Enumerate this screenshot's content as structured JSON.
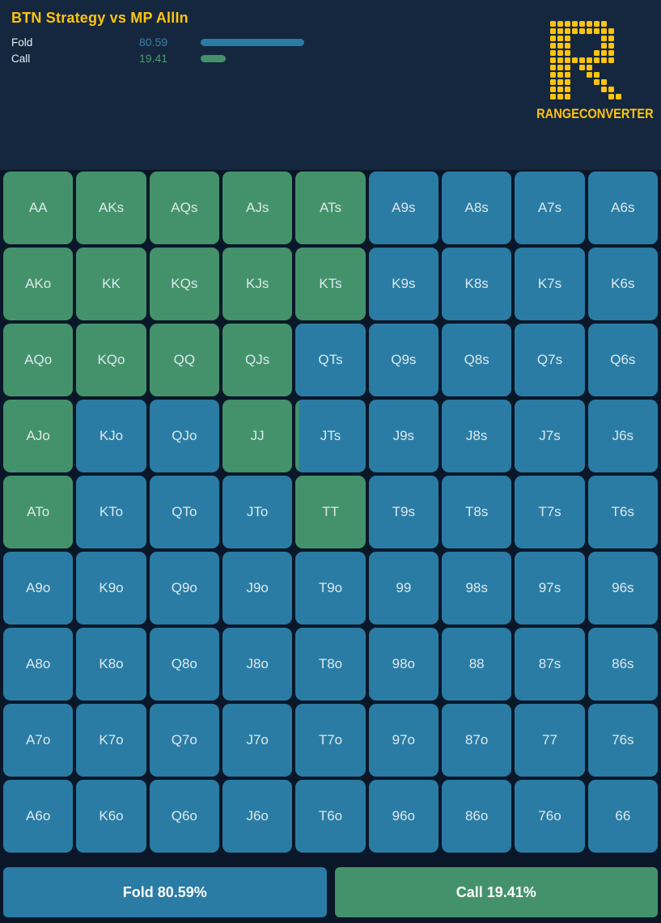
{
  "header": {
    "title": "BTN Strategy vs MP AllIn",
    "stats": [
      {
        "label": "Fold",
        "value": "80.59",
        "pct": 80.59,
        "value_color": "#3E81A9",
        "bar_color": "#2A7CA4"
      },
      {
        "label": "Call",
        "value": "19.41",
        "pct": 19.41,
        "value_color": "#4C9C70",
        "bar_color": "#45916B"
      }
    ],
    "logo_text": "RANGECONVERTER"
  },
  "colors": {
    "call_green": "#44926B",
    "fold_blue": "#2A7CA4",
    "background": "#0A1728",
    "header_background": "#15273F",
    "accent_gold": "#FFC40D"
  },
  "grid": {
    "rows": 9,
    "cols": 9,
    "cells": [
      {
        "label": "AA",
        "call_pct": 100
      },
      {
        "label": "AKs",
        "call_pct": 100
      },
      {
        "label": "AQs",
        "call_pct": 100
      },
      {
        "label": "AJs",
        "call_pct": 100
      },
      {
        "label": "ATs",
        "call_pct": 100
      },
      {
        "label": "A9s",
        "call_pct": 0
      },
      {
        "label": "A8s",
        "call_pct": 0
      },
      {
        "label": "A7s",
        "call_pct": 0
      },
      {
        "label": "A6s",
        "call_pct": 0
      },
      {
        "label": "AKo",
        "call_pct": 100
      },
      {
        "label": "KK",
        "call_pct": 100
      },
      {
        "label": "KQs",
        "call_pct": 100
      },
      {
        "label": "KJs",
        "call_pct": 100
      },
      {
        "label": "KTs",
        "call_pct": 100
      },
      {
        "label": "K9s",
        "call_pct": 0
      },
      {
        "label": "K8s",
        "call_pct": 0
      },
      {
        "label": "K7s",
        "call_pct": 0
      },
      {
        "label": "K6s",
        "call_pct": 0
      },
      {
        "label": "AQo",
        "call_pct": 100
      },
      {
        "label": "KQo",
        "call_pct": 100
      },
      {
        "label": "QQ",
        "call_pct": 100
      },
      {
        "label": "QJs",
        "call_pct": 100
      },
      {
        "label": "QTs",
        "call_pct": 0
      },
      {
        "label": "Q9s",
        "call_pct": 0
      },
      {
        "label": "Q8s",
        "call_pct": 0
      },
      {
        "label": "Q7s",
        "call_pct": 0
      },
      {
        "label": "Q6s",
        "call_pct": 0
      },
      {
        "label": "AJo",
        "call_pct": 100
      },
      {
        "label": "KJo",
        "call_pct": 0
      },
      {
        "label": "QJo",
        "call_pct": 0
      },
      {
        "label": "JJ",
        "call_pct": 100
      },
      {
        "label": "JTs",
        "call_pct": 5
      },
      {
        "label": "J9s",
        "call_pct": 0
      },
      {
        "label": "J8s",
        "call_pct": 0
      },
      {
        "label": "J7s",
        "call_pct": 0
      },
      {
        "label": "J6s",
        "call_pct": 0
      },
      {
        "label": "ATo",
        "call_pct": 100
      },
      {
        "label": "KTo",
        "call_pct": 0
      },
      {
        "label": "QTo",
        "call_pct": 0
      },
      {
        "label": "JTo",
        "call_pct": 0
      },
      {
        "label": "TT",
        "call_pct": 100
      },
      {
        "label": "T9s",
        "call_pct": 0
      },
      {
        "label": "T8s",
        "call_pct": 0
      },
      {
        "label": "T7s",
        "call_pct": 0
      },
      {
        "label": "T6s",
        "call_pct": 0
      },
      {
        "label": "A9o",
        "call_pct": 0
      },
      {
        "label": "K9o",
        "call_pct": 0
      },
      {
        "label": "Q9o",
        "call_pct": 0
      },
      {
        "label": "J9o",
        "call_pct": 0
      },
      {
        "label": "T9o",
        "call_pct": 0
      },
      {
        "label": "99",
        "call_pct": 0
      },
      {
        "label": "98s",
        "call_pct": 0
      },
      {
        "label": "97s",
        "call_pct": 0
      },
      {
        "label": "96s",
        "call_pct": 0
      },
      {
        "label": "A8o",
        "call_pct": 0
      },
      {
        "label": "K8o",
        "call_pct": 0
      },
      {
        "label": "Q8o",
        "call_pct": 0
      },
      {
        "label": "J8o",
        "call_pct": 0
      },
      {
        "label": "T8o",
        "call_pct": 0
      },
      {
        "label": "98o",
        "call_pct": 0
      },
      {
        "label": "88",
        "call_pct": 0
      },
      {
        "label": "87s",
        "call_pct": 0
      },
      {
        "label": "86s",
        "call_pct": 0
      },
      {
        "label": "A7o",
        "call_pct": 0
      },
      {
        "label": "K7o",
        "call_pct": 0
      },
      {
        "label": "Q7o",
        "call_pct": 0
      },
      {
        "label": "J7o",
        "call_pct": 0
      },
      {
        "label": "T7o",
        "call_pct": 0
      },
      {
        "label": "97o",
        "call_pct": 0
      },
      {
        "label": "87o",
        "call_pct": 0
      },
      {
        "label": "77",
        "call_pct": 0
      },
      {
        "label": "76s",
        "call_pct": 0
      },
      {
        "label": "A6o",
        "call_pct": 0
      },
      {
        "label": "K6o",
        "call_pct": 0
      },
      {
        "label": "Q6o",
        "call_pct": 0
      },
      {
        "label": "J6o",
        "call_pct": 0
      },
      {
        "label": "T6o",
        "call_pct": 0
      },
      {
        "label": "96o",
        "call_pct": 0
      },
      {
        "label": "86o",
        "call_pct": 0
      },
      {
        "label": "76o",
        "call_pct": 0
      },
      {
        "label": "66",
        "call_pct": 0
      }
    ]
  },
  "actions": {
    "fold_label": "Fold 80.59%",
    "call_label": "Call 19.41%"
  }
}
